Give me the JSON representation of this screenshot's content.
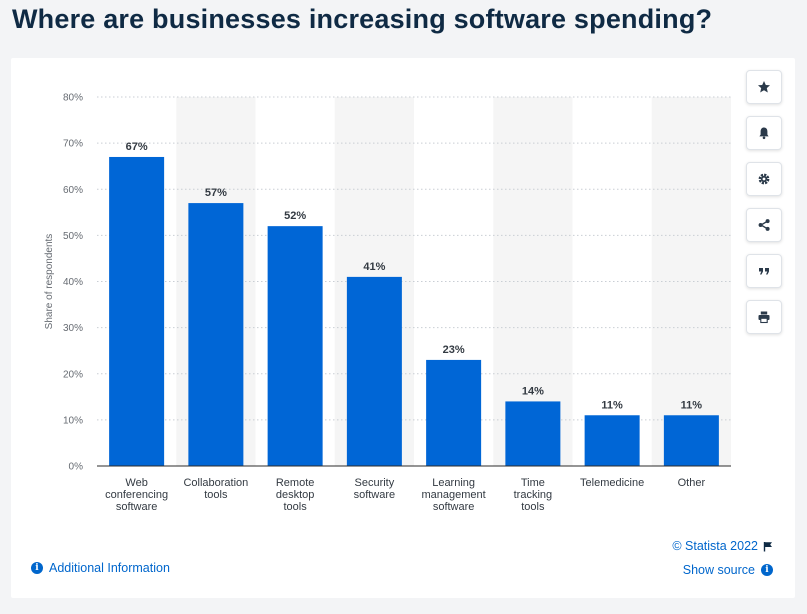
{
  "page": {
    "title": "Where are businesses increasing software spending?"
  },
  "toolbar": {
    "items": [
      {
        "name": "favorite",
        "icon": "star-icon"
      },
      {
        "name": "notification",
        "icon": "bell-icon"
      },
      {
        "name": "settings",
        "icon": "gear-icon"
      },
      {
        "name": "share",
        "icon": "share-icon"
      },
      {
        "name": "cite",
        "icon": "quote-icon"
      },
      {
        "name": "print",
        "icon": "printer-icon"
      }
    ]
  },
  "footer": {
    "additional_info": "Additional Information",
    "copyright": "© Statista 2022",
    "show_source": "Show source",
    "info_icon": "info-icon",
    "flag_icon": "flag-icon"
  },
  "colors": {
    "bar": "#0066d6",
    "band": "#f5f5f5",
    "title": "#0f2a44",
    "link": "#0066cc"
  },
  "chart_data": {
    "type": "bar",
    "categories": [
      [
        "Web",
        "conferencing",
        "software"
      ],
      [
        "Collaboration",
        "tools"
      ],
      [
        "Remote",
        "desktop",
        "tools"
      ],
      [
        "Security",
        "software"
      ],
      [
        "Learning",
        "management",
        "software"
      ],
      [
        "Time",
        "tracking",
        "tools"
      ],
      [
        "Telemedicine"
      ],
      [
        "Other"
      ]
    ],
    "values": [
      67,
      57,
      52,
      41,
      23,
      14,
      11,
      11
    ],
    "value_labels": [
      "67%",
      "57%",
      "52%",
      "41%",
      "23%",
      "14%",
      "11%",
      "11%"
    ],
    "ylabel": "Share of respondents",
    "ylim": [
      0,
      80
    ],
    "yticks": [
      0,
      10,
      20,
      30,
      40,
      50,
      60,
      70,
      80
    ],
    "ytick_labels": [
      "0%",
      "10%",
      "20%",
      "30%",
      "40%",
      "50%",
      "60%",
      "70%",
      "80%"
    ],
    "grid": true,
    "alternating_bands": true
  }
}
